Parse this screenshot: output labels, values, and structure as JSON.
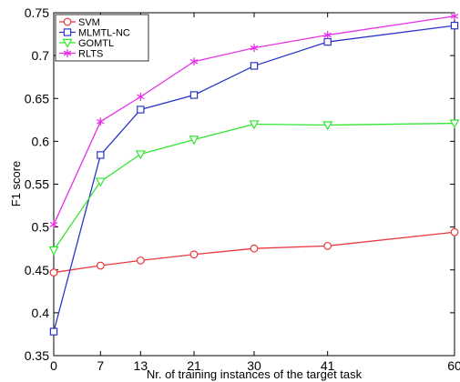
{
  "chart_data": {
    "type": "line",
    "xlabel": "Nr. of training instances of the target task",
    "ylabel": "F1 score",
    "x": [
      0,
      7,
      13,
      21,
      30,
      41,
      60
    ],
    "x_tick_labels": [
      "0",
      "7",
      "13",
      "21",
      "30",
      "41",
      "60"
    ],
    "y_ticks": [
      0.35,
      0.4,
      0.45,
      0.5,
      0.55,
      0.6,
      0.65,
      0.7,
      0.75
    ],
    "y_tick_labels": [
      "0.35",
      "0.4",
      "0.45",
      "0.5",
      "0.55",
      "0.6",
      "0.65",
      "0.7",
      "0.75"
    ],
    "ylim": [
      0.35,
      0.75
    ],
    "grid": false,
    "legend_position": "top-left",
    "series": [
      {
        "name": "SVM",
        "color": "#e8393f",
        "marker": "circle",
        "values": [
          0.447,
          0.455,
          0.461,
          0.468,
          0.475,
          0.478,
          0.494
        ]
      },
      {
        "name": "MLMTL-NC",
        "color": "#2b35c8",
        "marker": "square",
        "values": [
          0.378,
          0.584,
          0.637,
          0.654,
          0.688,
          0.716,
          0.735
        ]
      },
      {
        "name": "GOMTL",
        "color": "#33e633",
        "marker": "triangle-down",
        "values": [
          0.473,
          0.553,
          0.585,
          0.602,
          0.62,
          0.619,
          0.621
        ]
      },
      {
        "name": "RLTS",
        "color": "#e633e6",
        "marker": "asterisk",
        "values": [
          0.503,
          0.623,
          0.652,
          0.693,
          0.709,
          0.724,
          0.746
        ]
      }
    ]
  }
}
